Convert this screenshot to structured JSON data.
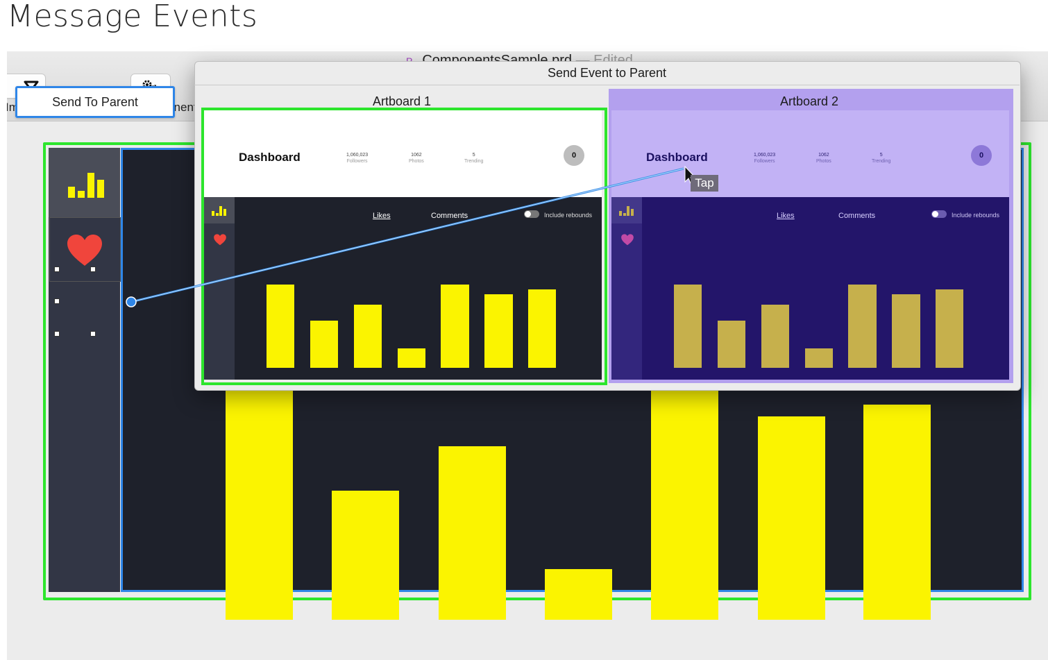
{
  "page_title": "Message Events",
  "window": {
    "doc_title": "ComponentsSample.prd",
    "doc_status": "— Edited ⌄",
    "doc_icon": "P"
  },
  "toolbar": {
    "import_label": "Import",
    "create_component_label": "Create Component"
  },
  "interaction": {
    "send_button_label": "Send To Parent",
    "tap_label": "Tap"
  },
  "popover": {
    "title": "Send Event to Parent",
    "artboards": [
      {
        "name": "Artboard 1"
      },
      {
        "name": "Artboard 2"
      }
    ]
  },
  "dashboard": {
    "title": "Dashboard",
    "stats": [
      {
        "value": "1,060,023",
        "label": "Followers"
      },
      {
        "value": "1062",
        "label": "Photos"
      },
      {
        "value": "5",
        "label": "Trending"
      }
    ],
    "badge": "0",
    "tabs": [
      "Likes",
      "Comments"
    ],
    "toggle_label": "Include rebounds",
    "bars": [
      83,
      47,
      63,
      19,
      83,
      73,
      78
    ],
    "main_bars": [
      100,
      56,
      75,
      22,
      100,
      88,
      93
    ]
  },
  "colors": {
    "accent_blue": "#2f86e8",
    "selection_green": "#2de52d",
    "bar_yellow": "#fbf400",
    "bar_gold": "#c6b04c",
    "artboard2_purple": "#b3a0ee",
    "dark_panel": "#1e212b"
  }
}
